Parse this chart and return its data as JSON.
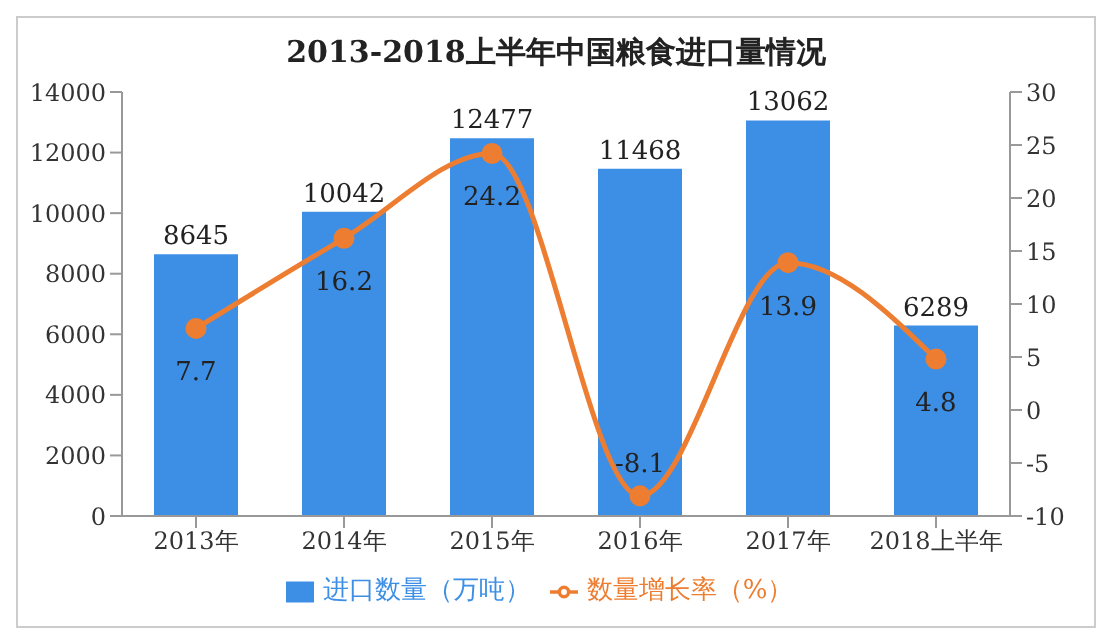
{
  "chart_data": {
    "type": "bar",
    "title": "2013-2018上半年中国粮食进口量情况",
    "categories": [
      "2013年",
      "2014年",
      "2015年",
      "2016年",
      "2017年",
      "2018上半年"
    ],
    "series": [
      {
        "name": "进口数量（万吨）",
        "color": "#3d8fe6",
        "values": [
          8645,
          10042,
          12477,
          11468,
          13062,
          6289
        ]
      },
      {
        "name": "数量增长率（%）",
        "type": "line",
        "axis": "y2",
        "color": "#ed7d31",
        "values": [
          7.7,
          16.2,
          24.2,
          -8.1,
          13.9,
          4.8
        ]
      }
    ],
    "ylim": [
      0,
      14000
    ],
    "yticks": [
      0,
      2000,
      4000,
      6000,
      8000,
      10000,
      12000,
      14000
    ],
    "y2lim": [
      -10,
      30
    ],
    "y2ticks": [
      -10,
      -5,
      0,
      5,
      10,
      15,
      20,
      25,
      30
    ],
    "data_labels": true,
    "legend": "bottom",
    "grid": false,
    "marker": "circle",
    "line_style": "solid"
  }
}
